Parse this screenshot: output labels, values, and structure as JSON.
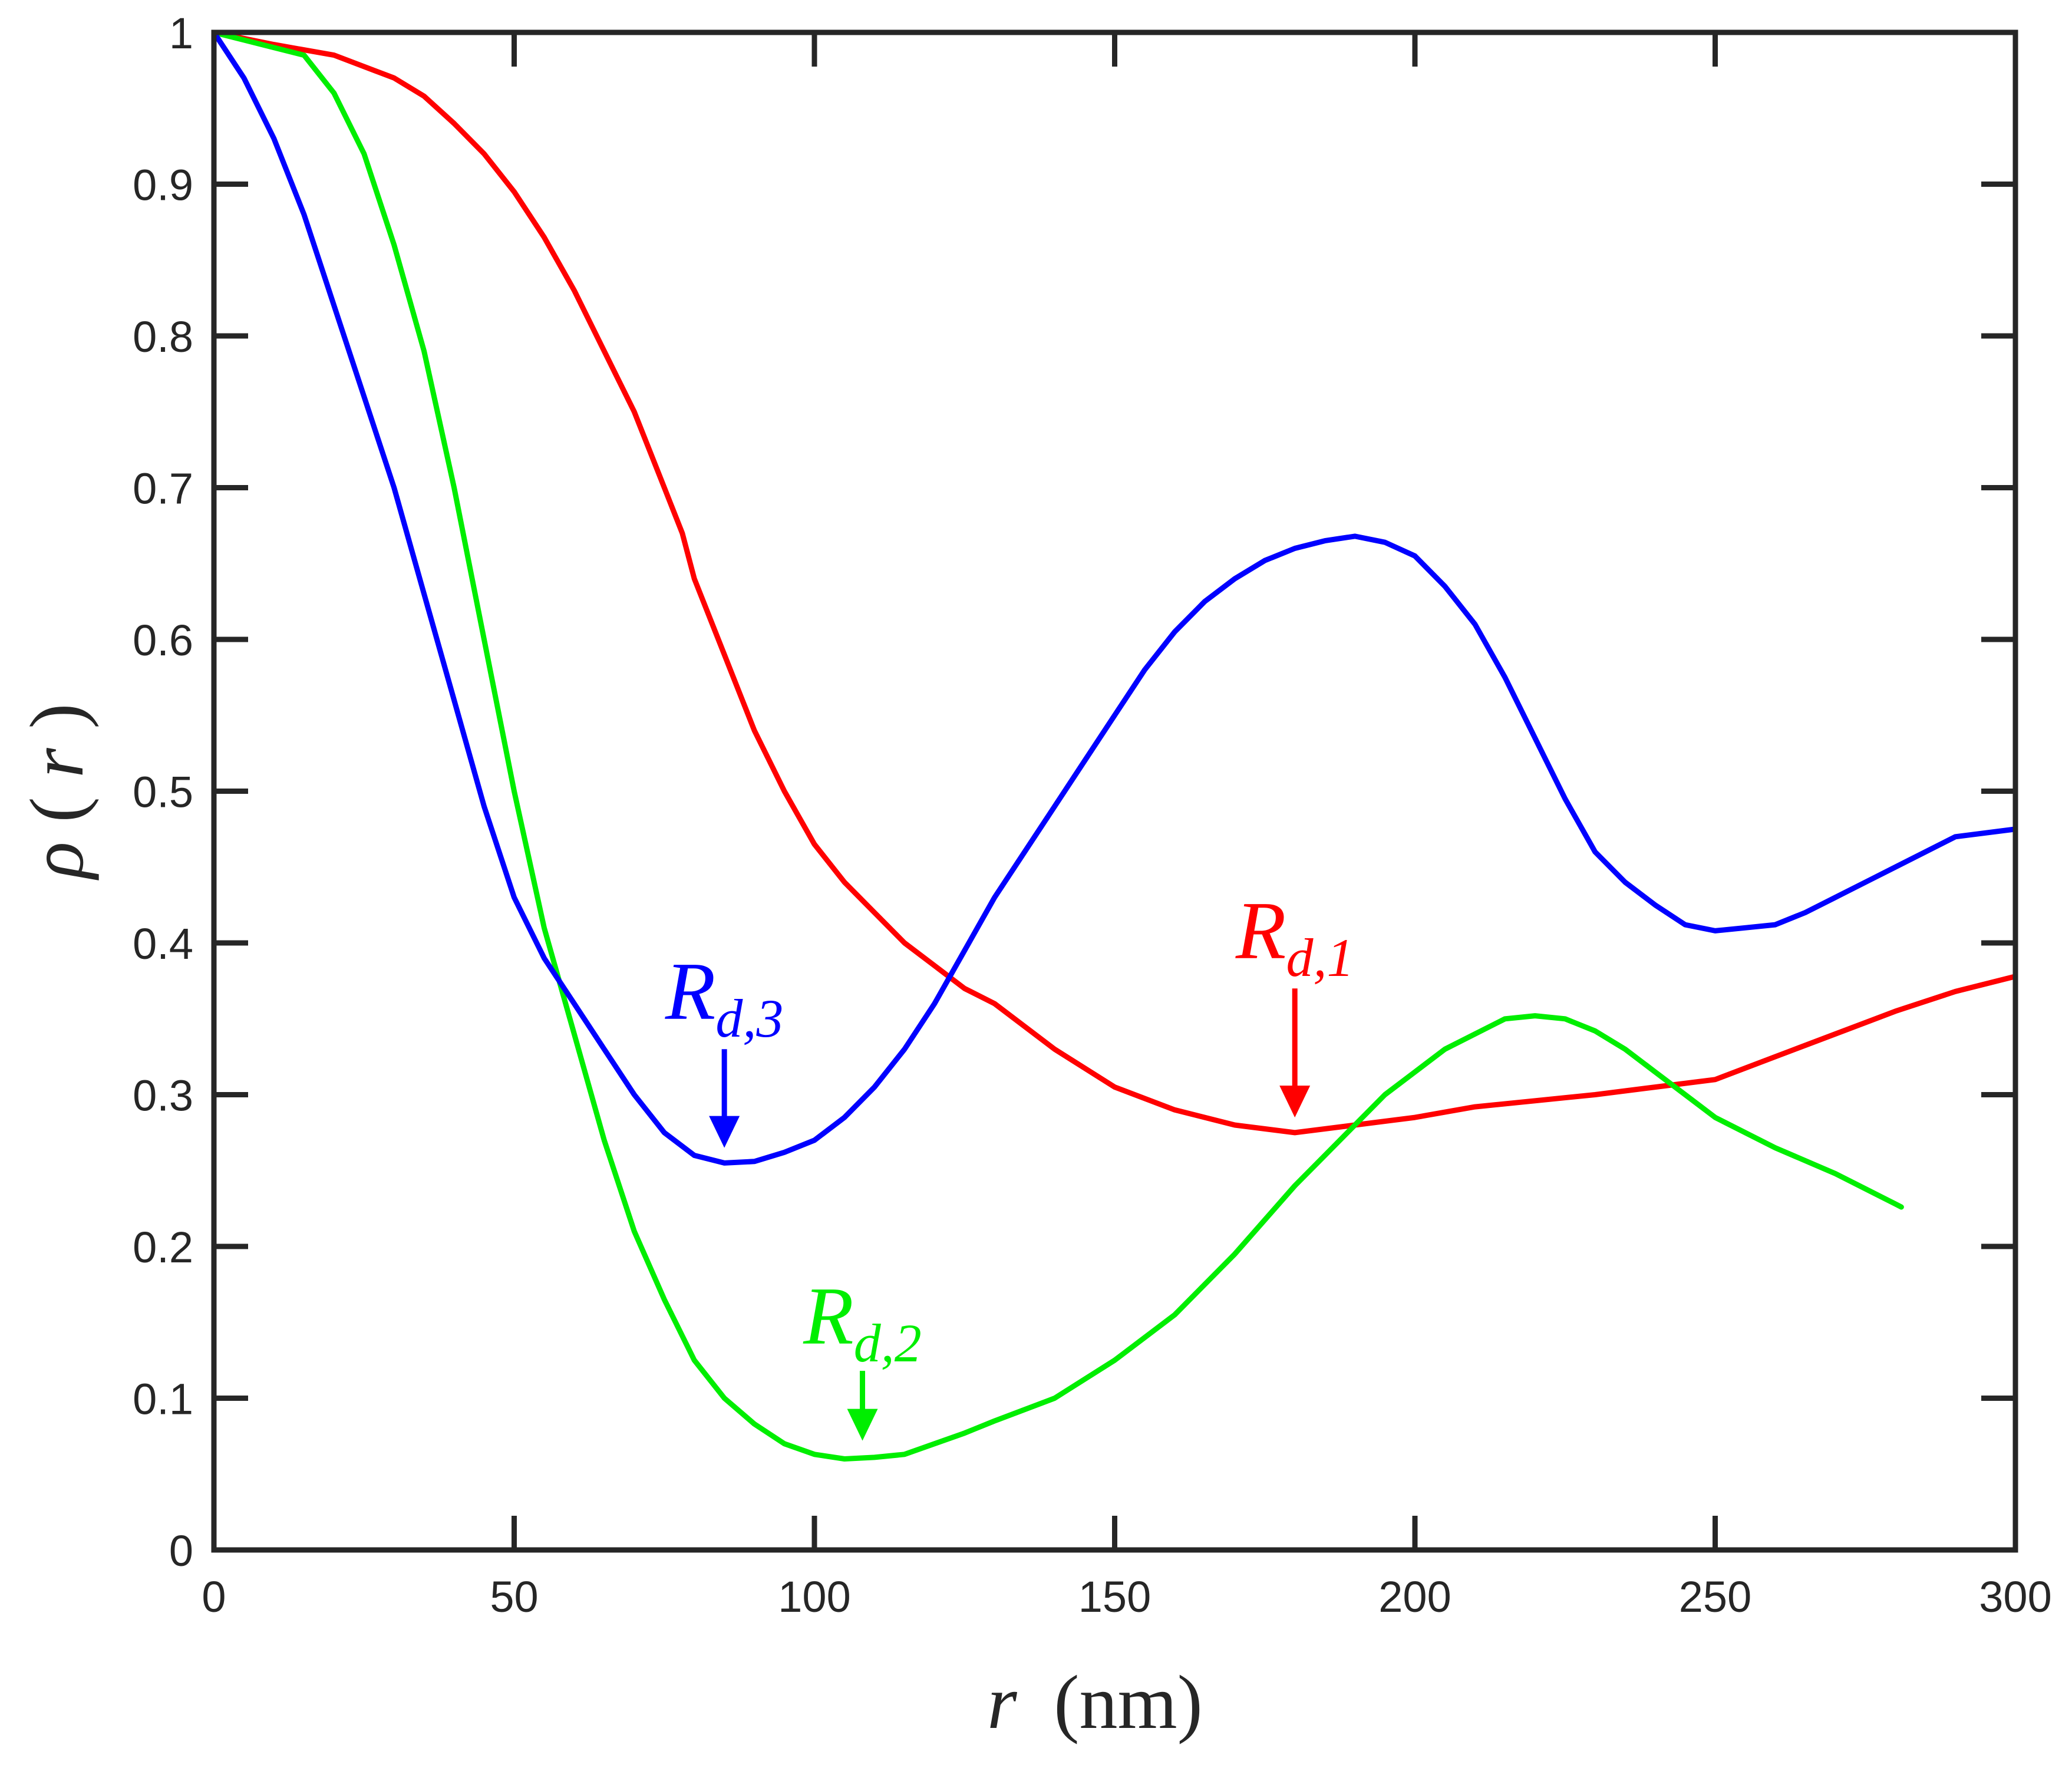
{
  "chart_data": {
    "type": "line",
    "xlabel": {
      "var": "r",
      "unit": "(nm)"
    },
    "ylabel": {
      "func": "ρ",
      "open": "(",
      "var": "r",
      "close": ")"
    },
    "xlim": [
      0,
      300
    ],
    "ylim": [
      0,
      1
    ],
    "xticks": [
      0,
      50,
      100,
      150,
      200,
      250,
      300
    ],
    "xtick_labels": [
      "0",
      "50",
      "100",
      "150",
      "200",
      "250",
      "300"
    ],
    "yticks": [
      0,
      0.1,
      0.2,
      0.3,
      0.4,
      0.5,
      0.6,
      0.7,
      0.8,
      0.9,
      1
    ],
    "ytick_labels": [
      "0",
      "0.1",
      "0.2",
      "0.3",
      "0.4",
      "0.5",
      "0.6",
      "0.7",
      "0.8",
      "0.9",
      "1"
    ],
    "grid": false,
    "series": [
      {
        "name": "R_d,1",
        "color": "#ff0000",
        "x": [
          0,
          10,
          20,
          30,
          35,
          40,
          45,
          50,
          55,
          60,
          65,
          70,
          75,
          78,
          80,
          85,
          88,
          90,
          95,
          100,
          105,
          110,
          115,
          120,
          125,
          130,
          140,
          150,
          160,
          170,
          180,
          190,
          200,
          210,
          220,
          230,
          240,
          250,
          260,
          270,
          280,
          290,
          300
        ],
        "y": [
          1.0,
          0.992,
          0.985,
          0.97,
          0.958,
          0.94,
          0.92,
          0.895,
          0.865,
          0.83,
          0.79,
          0.75,
          0.7,
          0.67,
          0.64,
          0.59,
          0.56,
          0.54,
          0.5,
          0.465,
          0.44,
          0.42,
          0.4,
          0.385,
          0.37,
          0.36,
          0.33,
          0.305,
          0.29,
          0.28,
          0.275,
          0.28,
          0.285,
          0.292,
          0.296,
          0.3,
          0.305,
          0.31,
          0.325,
          0.34,
          0.355,
          0.368,
          0.378
        ]
      },
      {
        "name": "R_d,2",
        "color": "#00ee00",
        "x": [
          0,
          5,
          10,
          15,
          20,
          25,
          30,
          35,
          40,
          45,
          50,
          55,
          60,
          65,
          70,
          75,
          80,
          85,
          90,
          95,
          100,
          105,
          110,
          115,
          120,
          125,
          130,
          140,
          150,
          160,
          170,
          180,
          185,
          190,
          195,
          200,
          205,
          210,
          215,
          220,
          225,
          230,
          235,
          240,
          245,
          250,
          260,
          270,
          280,
          281
        ],
        "y": [
          1.0,
          0.995,
          0.99,
          0.985,
          0.96,
          0.92,
          0.86,
          0.79,
          0.7,
          0.6,
          0.5,
          0.41,
          0.34,
          0.27,
          0.21,
          0.165,
          0.125,
          0.1,
          0.083,
          0.07,
          0.063,
          0.06,
          0.061,
          0.063,
          0.07,
          0.077,
          0.085,
          0.1,
          0.125,
          0.155,
          0.195,
          0.24,
          0.26,
          0.28,
          0.3,
          0.315,
          0.33,
          0.34,
          0.35,
          0.352,
          0.35,
          0.342,
          0.33,
          0.315,
          0.3,
          0.285,
          0.265,
          0.248,
          0.228,
          0.226
        ]
      },
      {
        "name": "R_d,3",
        "color": "#0000ff",
        "x": [
          0,
          5,
          10,
          15,
          20,
          25,
          30,
          35,
          40,
          45,
          50,
          55,
          60,
          65,
          70,
          75,
          80,
          85,
          90,
          95,
          100,
          105,
          110,
          115,
          120,
          125,
          130,
          135,
          140,
          145,
          150,
          155,
          160,
          165,
          170,
          175,
          180,
          185,
          190,
          195,
          200,
          205,
          210,
          215,
          220,
          225,
          230,
          235,
          240,
          245,
          250,
          255,
          260,
          265,
          270,
          280,
          290,
          300
        ],
        "y": [
          1.0,
          0.97,
          0.93,
          0.88,
          0.82,
          0.76,
          0.7,
          0.63,
          0.56,
          0.49,
          0.43,
          0.39,
          0.36,
          0.33,
          0.3,
          0.275,
          0.26,
          0.255,
          0.256,
          0.262,
          0.27,
          0.285,
          0.305,
          0.33,
          0.36,
          0.395,
          0.43,
          0.46,
          0.49,
          0.52,
          0.55,
          0.58,
          0.605,
          0.625,
          0.64,
          0.652,
          0.66,
          0.665,
          0.668,
          0.664,
          0.655,
          0.635,
          0.61,
          0.575,
          0.535,
          0.495,
          0.46,
          0.44,
          0.425,
          0.412,
          0.408,
          0.41,
          0.412,
          0.42,
          0.43,
          0.45,
          0.47,
          0.475
        ]
      }
    ],
    "annotations": [
      {
        "base": "R",
        "sub": "d,1",
        "color": "#ff0000",
        "arrow_x": 180,
        "arrow_y_tail": 0.37,
        "arrow_y_tip": 0.285,
        "label_x": 180,
        "label_y": 0.39
      },
      {
        "base": "R",
        "sub": "d,2",
        "color": "#00ee00",
        "arrow_x": 108,
        "arrow_y_tail": 0.118,
        "arrow_y_tip": 0.072,
        "label_x": 108,
        "label_y": 0.136
      },
      {
        "base": "R",
        "sub": "d,3",
        "color": "#0000ff",
        "arrow_x": 85,
        "arrow_y_tail": 0.33,
        "arrow_y_tip": 0.265,
        "label_x": 85,
        "label_y": 0.35
      }
    ]
  }
}
